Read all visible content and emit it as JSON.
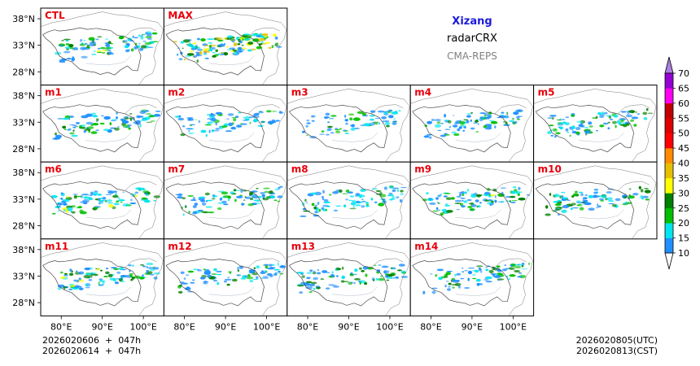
{
  "title": {
    "region": "Xizang",
    "product": "radarCRX",
    "model": "CMA-REPS"
  },
  "colors": {
    "title": "#1a1adb",
    "panel_label": "#e8000b",
    "model": "#808080"
  },
  "panels": [
    {
      "label": "CTL",
      "intensity": 0.55
    },
    {
      "label": "MAX",
      "intensity": 1.0
    },
    {
      "label": "m1",
      "intensity": 0.5
    },
    {
      "label": "m2",
      "intensity": 0.35
    },
    {
      "label": "m3",
      "intensity": 0.3
    },
    {
      "label": "m4",
      "intensity": 0.45
    },
    {
      "label": "m5",
      "intensity": 0.5
    },
    {
      "label": "m6",
      "intensity": 0.55
    },
    {
      "label": "m7",
      "intensity": 0.5
    },
    {
      "label": "m8",
      "intensity": 0.45
    },
    {
      "label": "m9",
      "intensity": 0.55
    },
    {
      "label": "m10",
      "intensity": 0.5
    },
    {
      "label": "m11",
      "intensity": 0.55
    },
    {
      "label": "m12",
      "intensity": 0.45
    },
    {
      "label": "m13",
      "intensity": 0.5
    },
    {
      "label": "m14",
      "intensity": 0.5
    }
  ],
  "lat_ticks": [
    "38°N",
    "33°N",
    "28°N"
  ],
  "lon_ticks": [
    "80°E",
    "90°E",
    "100°E"
  ],
  "colorbar": {
    "levels": [
      "10",
      "15",
      "20",
      "25",
      "30",
      "35",
      "40",
      "45",
      "50",
      "55",
      "60",
      "65",
      "70"
    ],
    "colors": [
      "#1e90ff",
      "#00e5ee",
      "#00c000",
      "#008000",
      "#ffff00",
      "#e6bf00",
      "#ff8c00",
      "#ff0000",
      "#dd0000",
      "#c00000",
      "#ff00f0",
      "#9400d3"
    ],
    "over_color": "#ab7fde"
  },
  "footer": {
    "init_utc": "2026020606  +  047h",
    "init_cst": "2026020614  +  047h",
    "valid_utc": "2026020805(UTC)",
    "valid_cst": "2026020813(CST)"
  }
}
